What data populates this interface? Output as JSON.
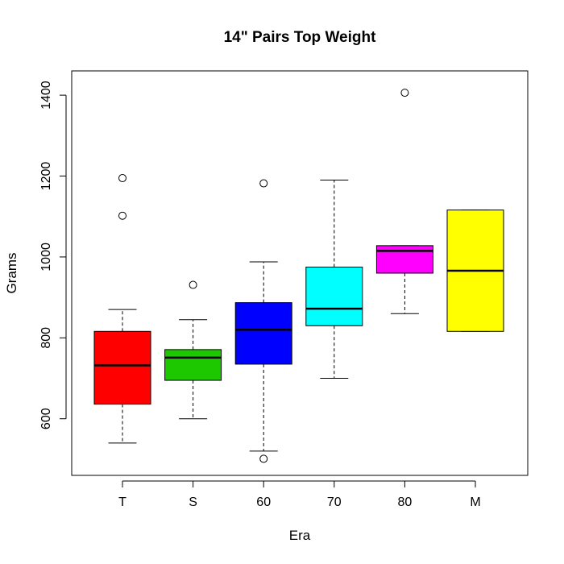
{
  "chart_data": {
    "type": "boxplot",
    "title": "14\" Pairs Top Weight",
    "xlabel": "Era",
    "ylabel": "Grams",
    "ylim": [
      460,
      1460
    ],
    "yticks": [
      600,
      800,
      1000,
      1200,
      1400
    ],
    "grid": false,
    "legend": "none",
    "categories": [
      "T",
      "S",
      "60",
      "70",
      "80",
      "M"
    ],
    "colors": [
      "#ff0000",
      "#1ec800",
      "#0000ff",
      "#00ffff",
      "#ff00ff",
      "#ffff00"
    ],
    "boxes": [
      {
        "name": "T",
        "lower_whisker": 540,
        "q1": 636,
        "median": 732,
        "q3": 816,
        "upper_whisker": 870,
        "outliers": [
          1102,
          1195
        ]
      },
      {
        "name": "S",
        "lower_whisker": 600,
        "q1": 695,
        "median": 751,
        "q3": 771,
        "upper_whisker": 845,
        "outliers": [
          931
        ]
      },
      {
        "name": "60",
        "lower_whisker": 520,
        "q1": 735,
        "median": 820,
        "q3": 887,
        "upper_whisker": 988,
        "outliers": [
          1182,
          501
        ]
      },
      {
        "name": "70",
        "lower_whisker": 700,
        "q1": 830,
        "median": 872,
        "q3": 975,
        "upper_whisker": 1190,
        "outliers": []
      },
      {
        "name": "80",
        "lower_whisker": 860,
        "q1": 960,
        "median": 1015,
        "q3": 1028,
        "upper_whisker": 1028,
        "outliers": [
          1406
        ]
      },
      {
        "name": "M",
        "lower_whisker": 816,
        "q1": 816,
        "median": 966,
        "q3": 1116,
        "upper_whisker": 1116,
        "outliers": []
      }
    ]
  }
}
